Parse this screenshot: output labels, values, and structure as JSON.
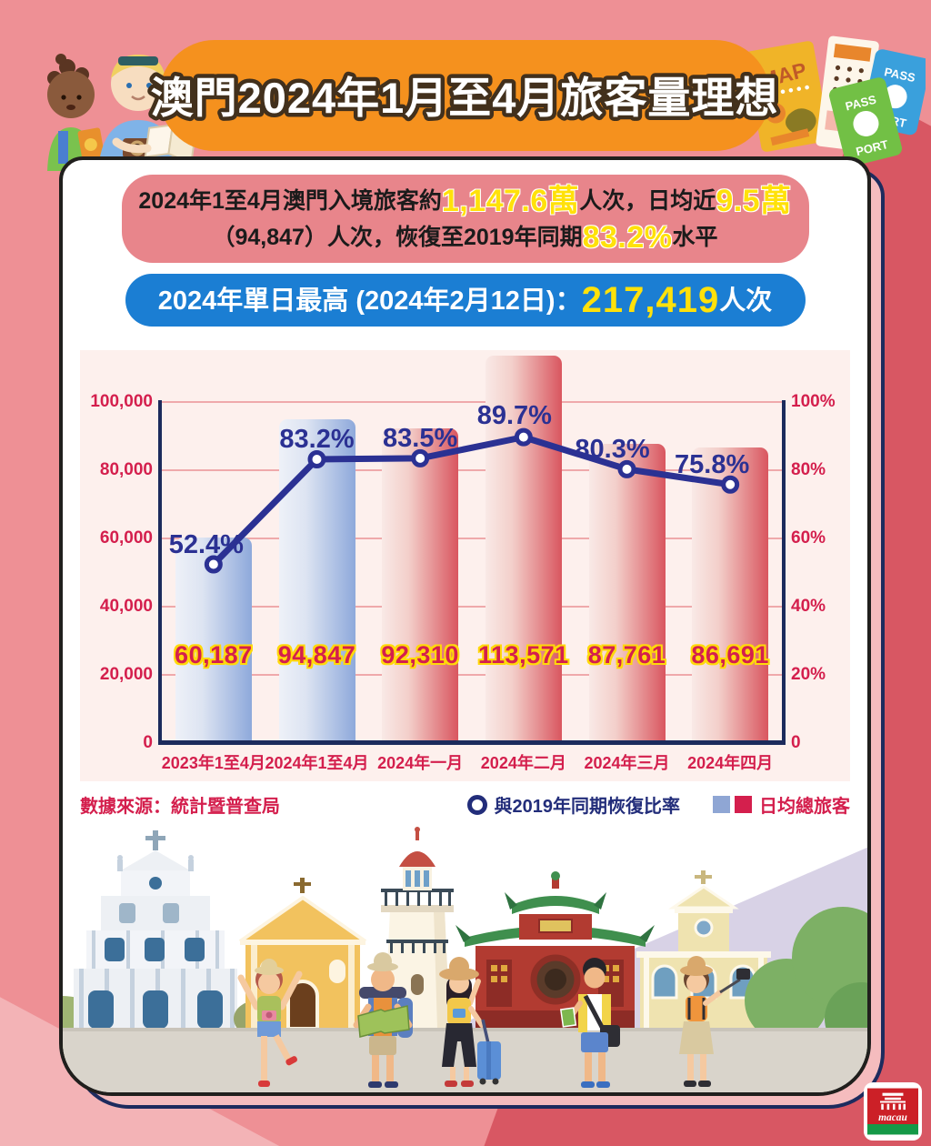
{
  "header": {
    "title": "澳門2024年1月至4月旅客量理想"
  },
  "summary": {
    "l1a": "2024年1至4月澳門入境旅客約",
    "l1b": "1,147.6萬",
    "l1c": "人次，日均近",
    "l1d": "9.5萬",
    "l2a": "（94,847）人次，恢復至2019年同期",
    "l2b": "83.2%",
    "l2c": "水平"
  },
  "peak": {
    "prefix": "2024年單日最高 (2024年2月12日)：",
    "value": "217,419",
    "suffix": "人次"
  },
  "chart_data": {
    "type": "bar+line",
    "categories": [
      "2023年1至4月",
      "2024年1至4月",
      "2024年一月",
      "2024年二月",
      "2024年三月",
      "2024年四月"
    ],
    "series": [
      {
        "name": "日均總旅客",
        "type": "bar",
        "axis": "left",
        "values": [
          60187,
          94847,
          92310,
          113571,
          87761,
          86691
        ],
        "labels": [
          "60,187",
          "94,847",
          "92,310",
          "113,571",
          "87,761",
          "86,691"
        ],
        "bar_palette": [
          "blue",
          "blue",
          "red",
          "red",
          "red",
          "red"
        ]
      },
      {
        "name": "與2019年同期恢復比率",
        "type": "line",
        "axis": "right",
        "values": [
          52.4,
          83.2,
          83.5,
          89.7,
          80.3,
          75.8
        ],
        "labels": [
          "52.4%",
          "83.2%",
          "83.5%",
          "89.7%",
          "80.3%",
          "75.8%"
        ]
      }
    ],
    "left_axis": {
      "max": 100000,
      "ticks": [
        "100,000",
        "80,000",
        "60,000",
        "40,000",
        "20,000",
        "0"
      ]
    },
    "right_axis": {
      "max": 100,
      "ticks": [
        "100%",
        "80%",
        "60%",
        "40%",
        "20%",
        "0"
      ]
    },
    "grid": true,
    "legend_position": "bottom-right",
    "colors": {
      "bar_blue": "#8ea9db",
      "bar_red": "#d9565f",
      "line": "#2b3193",
      "axis": "#1c2b5c",
      "tick_label": "#d41f4d",
      "value_label": "#d41f4d",
      "value_outline": "#ffd90a",
      "pct_label": "#2b3193"
    }
  },
  "legend": {
    "line_label": "與2019年同期恢復比率",
    "bar_label": "日均總旅客"
  },
  "source": "數據來源：統計暨普查局",
  "decor": {
    "map_label": "MAP",
    "passport1_top": "PASS",
    "passport1_bottom": "PORT",
    "passport2_top": "PASS",
    "passport2_bottom": "PORT",
    "logo_text": "macau"
  }
}
